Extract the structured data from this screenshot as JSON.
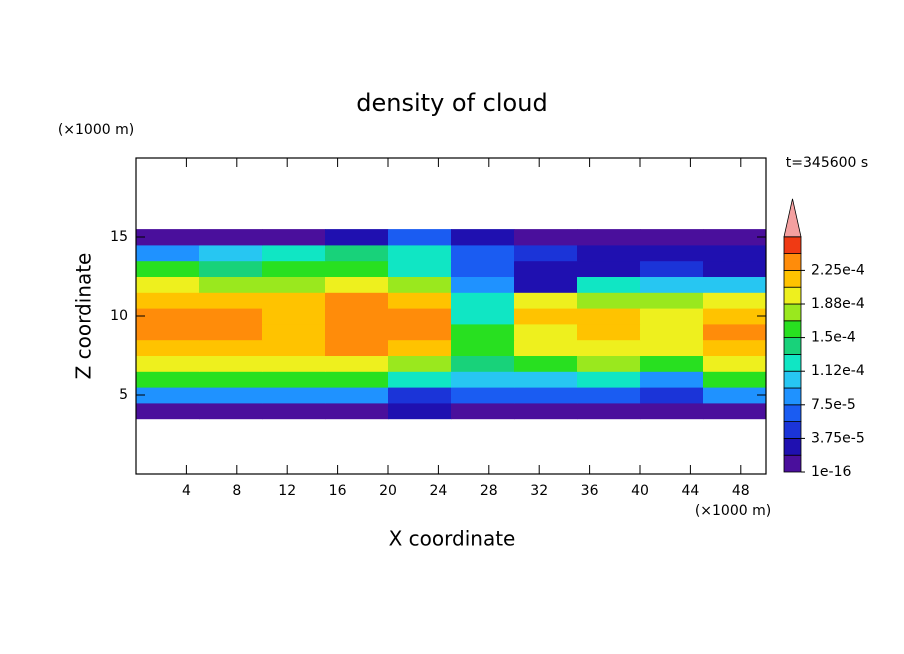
{
  "chart_data": {
    "type": "contour",
    "title": "density of cloud",
    "xlabel": "X coordinate",
    "ylabel": "Z coordinate",
    "x_unit": "(×1000 m)",
    "y_unit": "(×1000 m)",
    "time_label": "t=345600 s",
    "xlim": [
      0,
      50
    ],
    "ylim": [
      0,
      20
    ],
    "xticks": [
      4,
      8,
      12,
      16,
      20,
      24,
      28,
      32,
      36,
      40,
      44,
      48
    ],
    "yticks": [
      5,
      10,
      15
    ],
    "field": {
      "x": [
        2.5,
        7.5,
        12.5,
        17.5,
        22.5,
        27.5,
        32.5,
        37.5,
        42.5,
        47.5
      ],
      "z": [
        4,
        5,
        6,
        7,
        8,
        9,
        10,
        11,
        12,
        13,
        14,
        15
      ],
      "values": [
        [
          1e-05,
          1e-05,
          1e-05,
          1e-05,
          2e-05,
          1e-05,
          1e-05,
          1e-05,
          1e-05,
          1e-05
        ],
        [
          9e-05,
          9e-05,
          9e-05,
          9e-05,
          5e-05,
          6e-05,
          6e-05,
          6e-05,
          4e-05,
          9e-05
        ],
        [
          0.00015,
          0.00015,
          0.00015,
          0.00015,
          0.00012,
          0.0001,
          0.00011,
          0.00013,
          8e-05,
          0.00016
        ],
        [
          0.00019,
          0.00019,
          0.00019,
          0.0002,
          0.00018,
          0.00014,
          0.00016,
          0.00018,
          0.00015,
          0.0002
        ],
        [
          0.00022,
          0.00022,
          0.00021,
          0.00023,
          0.00021,
          0.00016,
          0.00019,
          0.0002,
          0.00019,
          0.00022
        ],
        [
          0.00024,
          0.00023,
          0.00022,
          0.00024,
          0.00023,
          0.00015,
          0.0002,
          0.00021,
          0.0002,
          0.00023
        ],
        [
          0.00024,
          0.00023,
          0.00022,
          0.00024,
          0.00024,
          0.00013,
          0.00021,
          0.00022,
          0.0002,
          0.00022
        ],
        [
          0.00022,
          0.00021,
          0.00021,
          0.00023,
          0.00022,
          0.00012,
          0.00019,
          0.00018,
          0.00017,
          0.00019
        ],
        [
          0.00019,
          0.00017,
          0.00018,
          0.0002,
          0.00017,
          8e-05,
          2e-05,
          0.00012,
          0.0001,
          0.0001
        ],
        [
          0.00015,
          0.00014,
          0.00015,
          0.00016,
          0.00013,
          6e-05,
          2e-05,
          3e-05,
          5e-05,
          3e-05
        ],
        [
          9e-05,
          0.00011,
          0.00012,
          0.00014,
          0.00013,
          7e-05,
          4e-05,
          2e-05,
          2e-05,
          2e-05
        ],
        [
          1e-05,
          1e-05,
          1e-05,
          2e-05,
          6e-05,
          3e-05,
          1e-05,
          1e-05,
          1e-05,
          1e-05
        ]
      ]
    },
    "colorbar": {
      "levels": [
        1e-16,
        1.875e-05,
        3.75e-05,
        5.625e-05,
        7.5e-05,
        9.375e-05,
        0.0001125,
        0.00013125,
        0.00015,
        0.00016875,
        0.0001875,
        0.00020625,
        0.000225,
        0.00024375
      ],
      "colors": [
        "#4a0f9c",
        "#1f10b0",
        "#1b34d8",
        "#1a5cf2",
        "#1f92ff",
        "#27c6f2",
        "#10e6c4",
        "#18d27a",
        "#28e020",
        "#9ae81e",
        "#eef01e",
        "#ffc300",
        "#ff8c0a",
        "#f03a14"
      ],
      "over_color": "#f4a0a0",
      "ticks": [
        {
          "value": 1e-16,
          "label": "1e-16"
        },
        {
          "value": 3.75e-05,
          "label": "3.75e-5"
        },
        {
          "value": 7.5e-05,
          "label": "7.5e-5"
        },
        {
          "value": 0.0001125,
          "label": "1.12e-4"
        },
        {
          "value": 0.00015,
          "label": "1.5e-4"
        },
        {
          "value": 0.0001875,
          "label": "1.88e-4"
        },
        {
          "value": 0.000225,
          "label": "2.25e-4"
        }
      ]
    }
  }
}
